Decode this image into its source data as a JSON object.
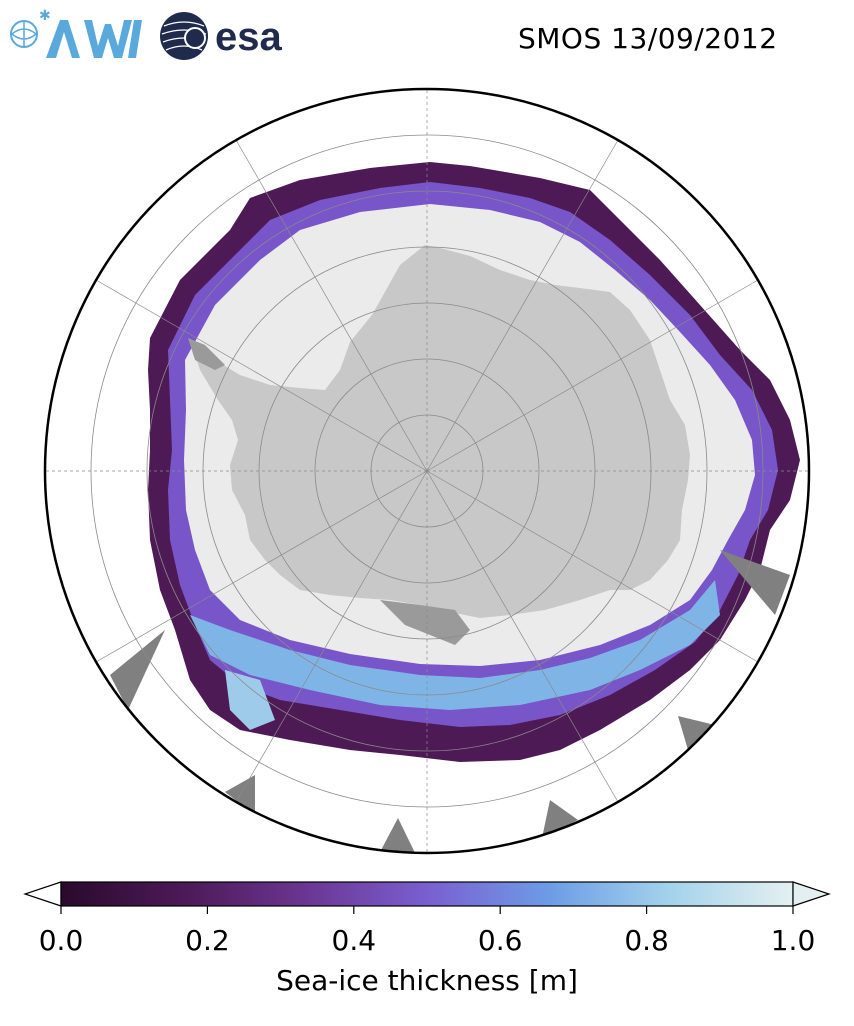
{
  "header": {
    "logo_awi": "AWI",
    "logo_esa": "esa",
    "title": "SMOS 13/09/2012"
  },
  "map": {
    "projection": "south-polar-stereographic",
    "colors": {
      "ocean": "#ffffff",
      "land": "#c8c8c8",
      "ice_shelf": "#808080",
      "open_pack": "#ebebeb",
      "thin_ice": "#4e1a56",
      "medium_ice": "#7855c9",
      "thick_ice": "#7fb5e6",
      "grid": "#8a8a8a",
      "boundary": "#000000"
    }
  },
  "colorbar": {
    "label": "Sea-ice thickness [m]",
    "min": 0.0,
    "max": 1.0,
    "ticks": [
      "0.0",
      "0.2",
      "0.4",
      "0.6",
      "0.8",
      "1.0"
    ],
    "stops": [
      "#2a0a2c",
      "#4c1a58",
      "#6a3590",
      "#7a5fd0",
      "#6d9de6",
      "#a3d2ec",
      "#e4f0f0"
    ]
  }
}
